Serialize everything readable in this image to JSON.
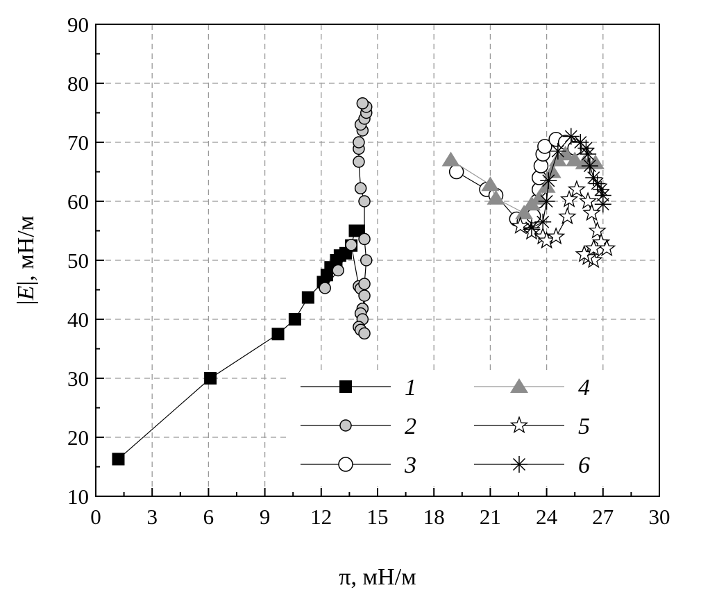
{
  "chart_data": {
    "type": "scatter",
    "xlabel": "π, мН/м",
    "ylabel_prefix": "|",
    "ylabel_italic": "E",
    "ylabel_suffix": "|, мН/м",
    "xlim": [
      0,
      30
    ],
    "ylim": [
      10,
      90
    ],
    "xticks": [
      0,
      3,
      6,
      9,
      12,
      15,
      18,
      21,
      24,
      27,
      30
    ],
    "yticks": [
      10,
      20,
      30,
      40,
      50,
      60,
      70,
      80,
      90
    ],
    "grid": true,
    "legend_placement": "bottom-right",
    "series": [
      {
        "name": "1",
        "marker": "square",
        "fill": "#000000",
        "line": "#000000",
        "points": [
          [
            1.2,
            16.3
          ],
          [
            6.1,
            30
          ],
          [
            9.7,
            37.5
          ],
          [
            10.6,
            40
          ],
          [
            11.3,
            43.7
          ],
          [
            12.1,
            46.3
          ],
          [
            12.3,
            47.5
          ],
          [
            12.5,
            48.8
          ],
          [
            12.8,
            50
          ],
          [
            13.0,
            50.8
          ],
          [
            13.3,
            51.2
          ],
          [
            13.6,
            52.5
          ],
          [
            13.8,
            55
          ],
          [
            14.0,
            55
          ]
        ]
      },
      {
        "name": "2",
        "marker": "circle-small",
        "fill": "#c8c8c8",
        "line": "#000000",
        "points": [
          [
            12.2,
            45.3
          ],
          [
            12.9,
            48.3
          ],
          [
            13.6,
            52.6
          ],
          [
            14.0,
            45.6
          ],
          [
            14.1,
            45.2
          ],
          [
            14.3,
            44
          ],
          [
            14.2,
            41.8
          ],
          [
            14.1,
            41
          ],
          [
            14.2,
            40
          ],
          [
            14.0,
            38.7
          ],
          [
            14.1,
            38.2
          ],
          [
            14.3,
            37.6
          ],
          [
            14.3,
            46
          ],
          [
            14.4,
            50
          ],
          [
            14.3,
            53.6
          ],
          [
            14.3,
            60
          ],
          [
            14.1,
            62.2
          ],
          [
            14.0,
            66.7
          ],
          [
            14.0,
            68.9
          ],
          [
            14.0,
            70
          ],
          [
            14.2,
            72
          ],
          [
            14.1,
            73
          ],
          [
            14.3,
            74
          ],
          [
            14.4,
            75
          ],
          [
            14.4,
            76
          ],
          [
            14.2,
            76.6
          ]
        ]
      },
      {
        "name": "3",
        "marker": "circle-open",
        "fill": "#ffffff",
        "line": "#000000",
        "points": [
          [
            19.2,
            65
          ],
          [
            20.8,
            62
          ],
          [
            21.3,
            61
          ],
          [
            22.4,
            57
          ],
          [
            22.8,
            56.5
          ],
          [
            23.3,
            57.5
          ],
          [
            23.5,
            60
          ],
          [
            23.6,
            62
          ],
          [
            23.6,
            64
          ],
          [
            23.7,
            66
          ],
          [
            23.8,
            68
          ],
          [
            23.9,
            69.3
          ],
          [
            24.5,
            70.5
          ],
          [
            25.0,
            70
          ],
          [
            25.5,
            69
          ]
        ]
      },
      {
        "name": "4",
        "marker": "triangle",
        "fill": "#8c8c8c",
        "line": "#999999",
        "points": [
          [
            18.9,
            67
          ],
          [
            21.0,
            62.8
          ],
          [
            21.3,
            60.5
          ],
          [
            22.8,
            58
          ],
          [
            23.2,
            59.5
          ],
          [
            23.6,
            60.5
          ],
          [
            24.0,
            62.5
          ],
          [
            24.3,
            65
          ],
          [
            24.6,
            67
          ],
          [
            25.0,
            68
          ],
          [
            25.5,
            67
          ],
          [
            26.0,
            66.5
          ],
          [
            26.6,
            66.5
          ]
        ]
      },
      {
        "name": "5",
        "marker": "star-open",
        "fill": "#ffffff",
        "line": "#000000",
        "points": [
          [
            22.6,
            55.8
          ],
          [
            23.2,
            54.8
          ],
          [
            23.8,
            54
          ],
          [
            24.0,
            53.3
          ],
          [
            24.5,
            54
          ],
          [
            25.1,
            57.4
          ],
          [
            25.2,
            60.3
          ],
          [
            25.6,
            62
          ],
          [
            26.2,
            60
          ],
          [
            26.4,
            58
          ],
          [
            26.7,
            55
          ],
          [
            26.9,
            53
          ],
          [
            27.2,
            52
          ],
          [
            26.5,
            50
          ],
          [
            26.2,
            50.5
          ],
          [
            26.0,
            51
          ],
          [
            26.5,
            52
          ]
        ]
      },
      {
        "name": "6",
        "marker": "asterisk",
        "fill": "#000000",
        "line": "#000000",
        "points": [
          [
            23.2,
            55.5
          ],
          [
            23.8,
            56.5
          ],
          [
            24.0,
            60
          ],
          [
            24.1,
            63.5
          ],
          [
            24.6,
            68.5
          ],
          [
            25.3,
            71
          ],
          [
            25.8,
            70
          ],
          [
            26.1,
            69
          ],
          [
            26.2,
            68
          ],
          [
            26.3,
            66
          ],
          [
            26.5,
            64
          ],
          [
            26.7,
            63
          ],
          [
            26.9,
            62
          ],
          [
            27.0,
            61
          ],
          [
            27.0,
            59.5
          ]
        ]
      }
    ]
  }
}
